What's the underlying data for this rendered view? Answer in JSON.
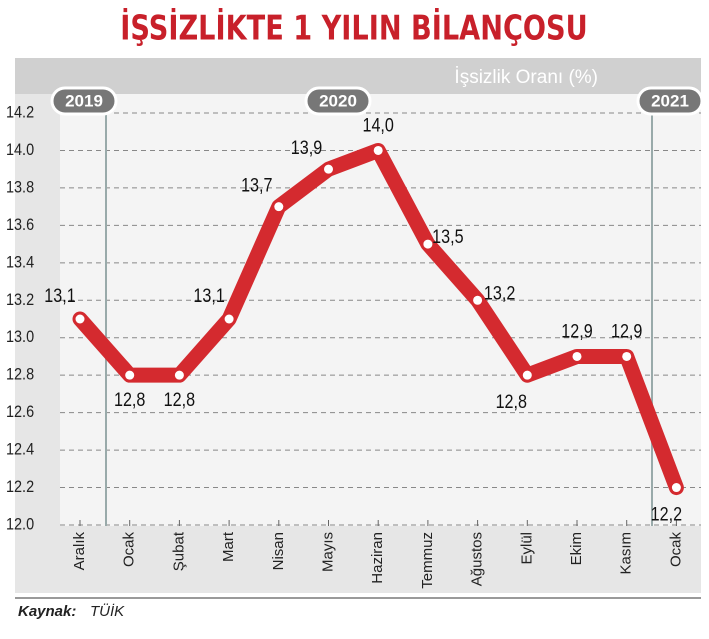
{
  "chart_data": {
    "type": "line",
    "title": "İŞSİZLİKTE 1 YILIN BİLANÇOSU",
    "subtitle": "İşsizlik Oranı (%)",
    "year_labels": [
      "2019",
      "2020",
      "2021"
    ],
    "categories": [
      "Aralık",
      "Ocak",
      "Şubat",
      "Mart",
      "Nisan",
      "Mayıs",
      "Haziran",
      "Temmuz",
      "Ağustos",
      "Eylül",
      "Ekim",
      "Kasım",
      "Ocak"
    ],
    "values": [
      13.1,
      12.8,
      12.8,
      13.1,
      13.7,
      13.9,
      14.0,
      13.5,
      13.2,
      12.8,
      12.9,
      12.9,
      12.2
    ],
    "value_labels": [
      "13,1",
      "12,8",
      "12,8",
      "13,1",
      "13,7",
      "13,9",
      "14,0",
      "13,5",
      "13,2",
      "12,8",
      "12,9",
      "12,9",
      "12,2"
    ],
    "color": "#d42a2f",
    "ylim": [
      12.0,
      14.2
    ],
    "yticks": [
      {
        "value": 12.0,
        "label": "12.0"
      },
      12.2,
      12.4,
      12.6,
      12.8,
      {
        "value": 13.0,
        "label": "13.0"
      },
      13.2,
      13.4,
      13.6,
      13.8,
      {
        "value": 14.0,
        "label": "14.0"
      },
      14.2
    ],
    "grid": true,
    "source_label": "Kaynak:",
    "source": "TÜİK"
  }
}
